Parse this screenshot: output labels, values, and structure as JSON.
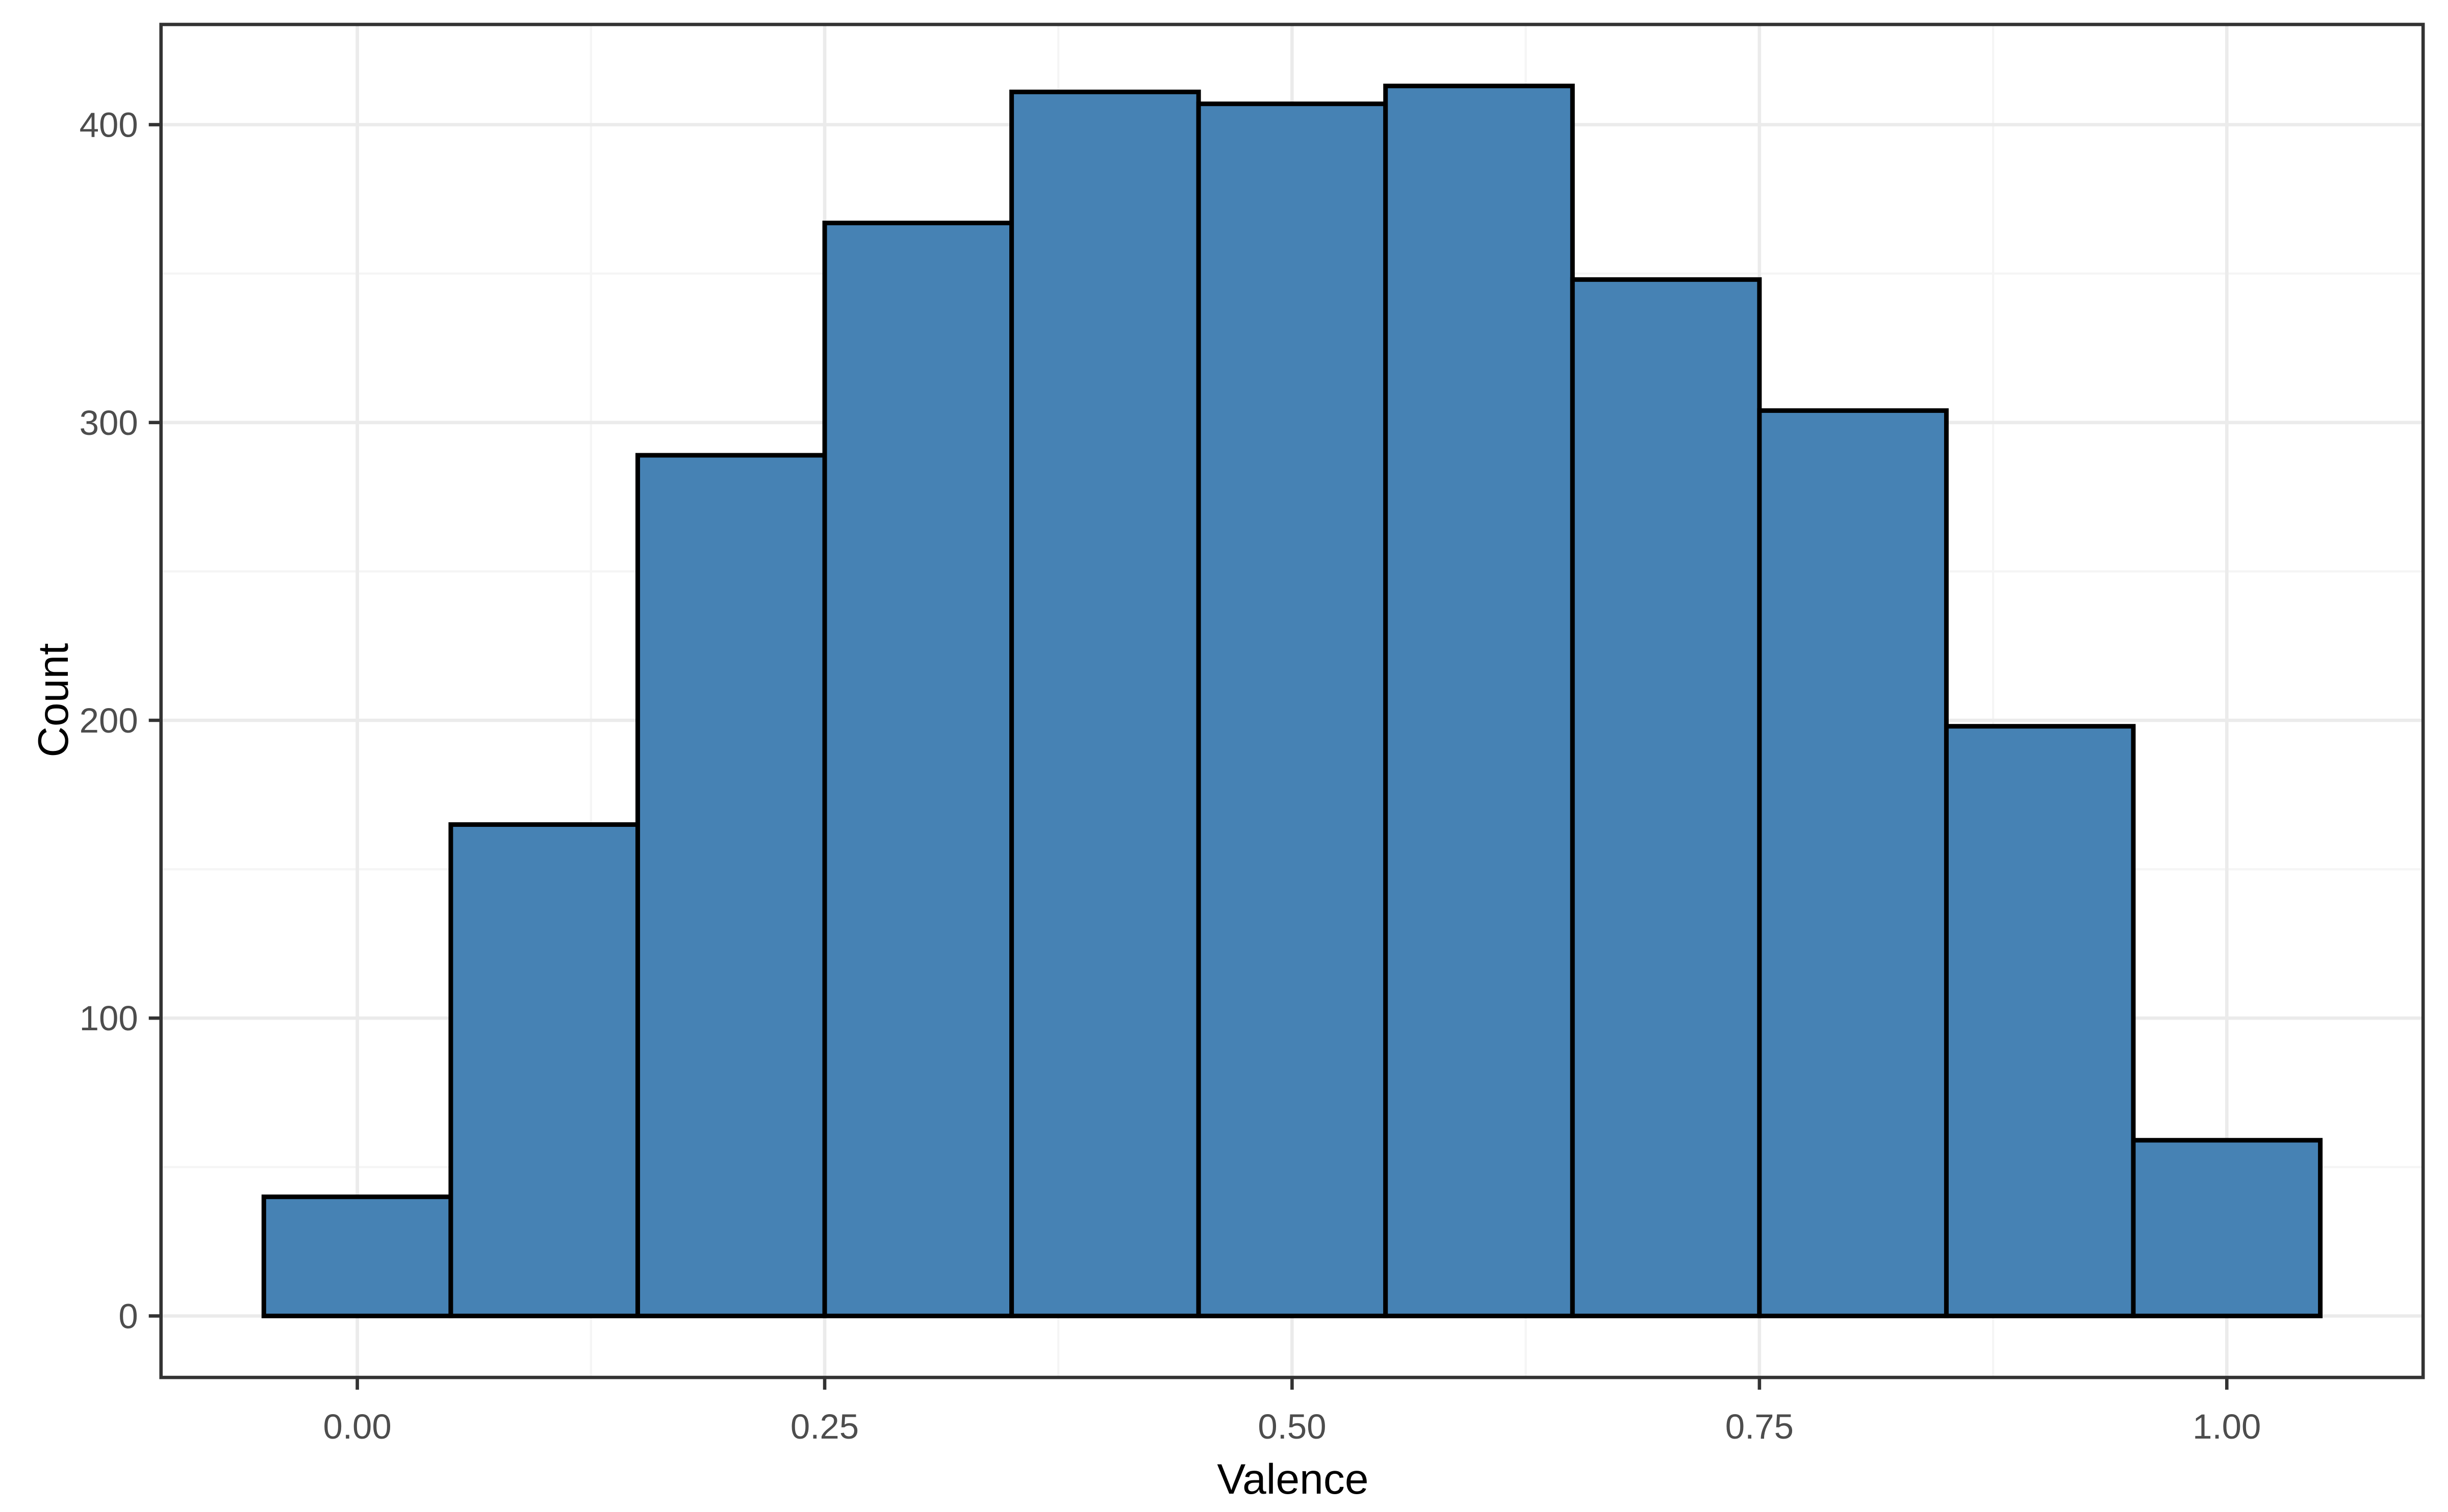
{
  "chart_data": {
    "type": "bar",
    "subtype": "histogram",
    "title": "",
    "xlabel": "Valence",
    "ylabel": "Count",
    "bin_width": 0.1,
    "bin_centers": [
      0.0,
      0.1,
      0.2,
      0.3,
      0.4,
      0.5,
      0.6,
      0.7,
      0.8,
      0.9,
      1.0
    ],
    "values": [
      40,
      165,
      289,
      367,
      411,
      407,
      413,
      348,
      304,
      198,
      59
    ],
    "x_ticks": {
      "major": [
        0,
        0.25,
        0.5,
        0.75,
        1.0
      ],
      "minor": [
        0.125,
        0.375,
        0.625,
        0.875
      ],
      "labels": [
        "0.00",
        "0.25",
        "0.50",
        "0.75",
        "1.00"
      ]
    },
    "y_ticks": {
      "major": [
        0,
        100,
        200,
        300,
        400
      ],
      "minor": [
        50,
        150,
        250,
        350
      ],
      "labels": [
        "0",
        "100",
        "200",
        "300",
        "400"
      ]
    },
    "xlim": [
      -0.105,
      1.105
    ],
    "ylim": [
      -20.65,
      433.65
    ],
    "grid": "major+minor",
    "legend": "none",
    "colors": {
      "bar_fill": "#4682B4",
      "bar_stroke": "#000000",
      "panel_border": "#333333",
      "grid_major": "#EBEBEB",
      "grid_minor": "#F5F5F5",
      "tick_mark": "#333333",
      "tick_label": "#4D4D4D",
      "axis_title": "#000000",
      "panel_background": "#FFFFFF"
    }
  }
}
